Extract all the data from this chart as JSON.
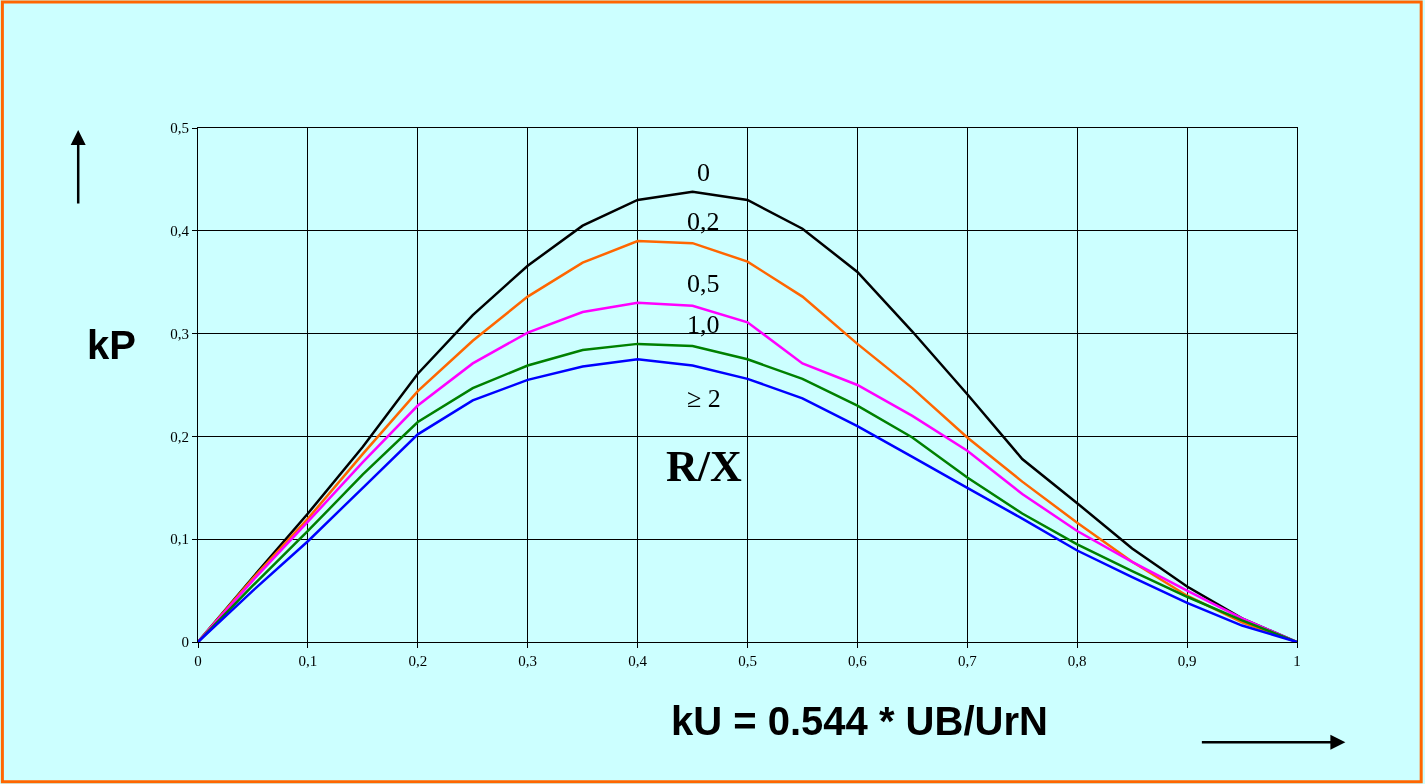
{
  "chart_data": {
    "type": "line",
    "xlabel": "kU = 0.544 * UB/UrN",
    "ylabel": "kP",
    "x": [
      0,
      0.05,
      0.1,
      0.15,
      0.2,
      0.25,
      0.3,
      0.35,
      0.4,
      0.45,
      0.5,
      0.55,
      0.6,
      0.65,
      0.7,
      0.75,
      0.8,
      0.85,
      0.9,
      0.95,
      1
    ],
    "series": [
      {
        "name": "0",
        "color": "#000000",
        "values": [
          0,
          0.063,
          0.125,
          0.19,
          0.261,
          0.318,
          0.366,
          0.405,
          0.43,
          0.438,
          0.43,
          0.402,
          0.36,
          0.302,
          0.241,
          0.178,
          0.135,
          0.091,
          0.054,
          0.023,
          0
        ]
      },
      {
        "name": "0,2",
        "color": "#ff6600",
        "values": [
          0,
          0.062,
          0.12,
          0.183,
          0.244,
          0.293,
          0.336,
          0.369,
          0.39,
          0.388,
          0.37,
          0.336,
          0.29,
          0.247,
          0.199,
          0.156,
          0.116,
          0.078,
          0.045,
          0.019,
          0
        ]
      },
      {
        "name": "0,5",
        "color": "#ff00ff",
        "values": [
          0,
          0.06,
          0.117,
          0.175,
          0.23,
          0.271,
          0.301,
          0.321,
          0.33,
          0.327,
          0.311,
          0.271,
          0.25,
          0.22,
          0.186,
          0.144,
          0.108,
          0.078,
          0.05,
          0.023,
          0
        ]
      },
      {
        "name": "1,0",
        "color": "#008000",
        "values": [
          0,
          0.055,
          0.108,
          0.163,
          0.214,
          0.247,
          0.269,
          0.284,
          0.29,
          0.288,
          0.275,
          0.256,
          0.23,
          0.199,
          0.16,
          0.125,
          0.095,
          0.069,
          0.044,
          0.021,
          0
        ]
      },
      {
        "name": "≥ 2",
        "color": "#0000ff",
        "values": [
          0,
          0.05,
          0.098,
          0.15,
          0.202,
          0.235,
          0.255,
          0.268,
          0.275,
          0.269,
          0.256,
          0.237,
          0.21,
          0.18,
          0.15,
          0.12,
          0.089,
          0.063,
          0.038,
          0.016,
          0
        ]
      }
    ],
    "annotations": [
      "R/X"
    ],
    "xlim": [
      0,
      1
    ],
    "ylim": [
      0,
      0.5
    ],
    "xticks": [
      0,
      {
        "value": 0.1,
        "label": "0,1"
      },
      {
        "value": 0.2,
        "label": "0,2"
      },
      {
        "value": 0.3,
        "label": "0,3"
      },
      {
        "value": 0.4,
        "label": "0,4"
      },
      {
        "value": 0.5,
        "label": "0,5"
      },
      {
        "value": 0.6,
        "label": "0,6"
      },
      {
        "value": 0.7,
        "label": "0,7"
      },
      {
        "value": 0.8,
        "label": "0,8"
      },
      {
        "value": 0.9,
        "label": "0,9"
      },
      1
    ],
    "yticks": [
      0,
      {
        "value": 0.1,
        "label": "0,1"
      },
      {
        "value": 0.2,
        "label": "0,2"
      },
      {
        "value": 0.3,
        "label": "0,3"
      },
      {
        "value": 0.4,
        "label": "0,4"
      },
      {
        "value": 0.5,
        "label": "0,5"
      }
    ],
    "grid": true,
    "legend": false,
    "marker": "none",
    "line_style": "solid"
  }
}
